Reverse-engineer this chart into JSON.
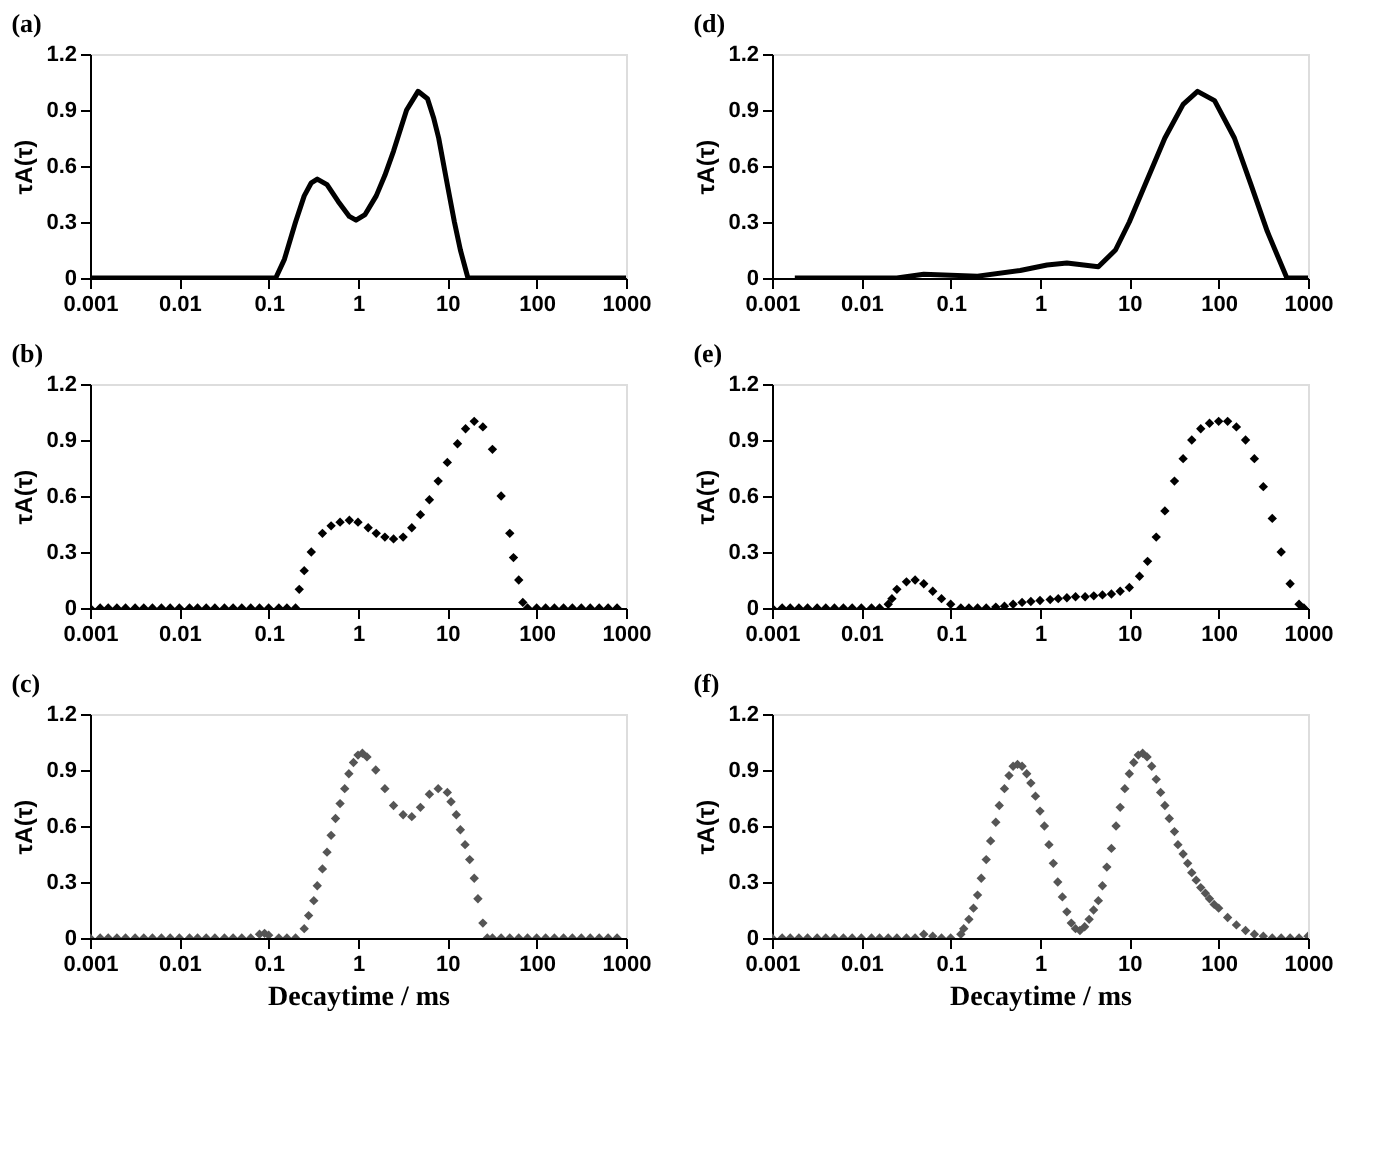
{
  "chart_data": [
    {
      "type": "line",
      "title": "(a)",
      "ylabel": "τA(τ)",
      "log": "x",
      "xlim": [
        0.001,
        1000
      ],
      "ylim": [
        0,
        1.2
      ],
      "xticks": [
        0.001,
        0.01,
        0.1,
        1,
        10,
        100,
        1000
      ],
      "yticks": [
        0,
        0.3,
        0.6,
        0.9,
        1.2
      ],
      "grid": false,
      "marker": "none",
      "line_style": "solid",
      "series": [
        {
          "color": "#000000",
          "x": [
            0.001,
            0.01,
            0.12,
            0.15,
            0.2,
            0.25,
            0.3,
            0.35,
            0.45,
            0.6,
            0.8,
            0.95,
            1.2,
            1.6,
            2,
            2.5,
            3,
            3.5,
            4.7,
            6,
            7,
            8,
            10,
            12,
            14,
            17,
            100,
            1000
          ],
          "values": [
            0,
            0,
            0,
            0.1,
            0.3,
            0.44,
            0.51,
            0.53,
            0.5,
            0.41,
            0.33,
            0.31,
            0.34,
            0.44,
            0.55,
            0.68,
            0.8,
            0.9,
            1.0,
            0.96,
            0.86,
            0.75,
            0.5,
            0.3,
            0.15,
            0,
            0,
            0
          ]
        }
      ]
    },
    {
      "type": "line",
      "title": "(d)",
      "ylabel": "τA(τ)",
      "log": "x",
      "xlim": [
        0.001,
        1000
      ],
      "ylim": [
        0,
        1.2
      ],
      "xticks": [
        0.001,
        0.01,
        0.1,
        1,
        10,
        100,
        1000
      ],
      "yticks": [
        0,
        0.3,
        0.6,
        0.9,
        1.2
      ],
      "grid": false,
      "marker": "none",
      "line_style": "solid",
      "series": [
        {
          "color": "#000000",
          "x": [
            0.0018,
            0.01,
            0.025,
            0.05,
            0.1,
            0.2,
            0.6,
            1.2,
            2,
            4.5,
            7,
            10,
            15,
            25,
            40,
            58,
            90,
            150,
            230,
            350,
            580,
            1000
          ],
          "values": [
            0,
            0,
            0,
            0.02,
            0.015,
            0.01,
            0.04,
            0.07,
            0.08,
            0.06,
            0.15,
            0.3,
            0.5,
            0.75,
            0.93,
            1.0,
            0.95,
            0.75,
            0.5,
            0.25,
            0,
            0
          ]
        }
      ]
    },
    {
      "type": "scatter",
      "title": "(b)",
      "ylabel": "τA(τ)",
      "log": "x",
      "xlim": [
        0.001,
        1000
      ],
      "ylim": [
        0,
        1.2
      ],
      "xticks": [
        0.001,
        0.01,
        0.1,
        1,
        10,
        100,
        1000
      ],
      "yticks": [
        0,
        0.3,
        0.6,
        0.9,
        1.2
      ],
      "grid": false,
      "marker": "diamond",
      "series": [
        {
          "color": "#000000",
          "x": [
            0.001,
            0.0013,
            0.0016,
            0.002,
            0.0025,
            0.0032,
            0.004,
            0.005,
            0.0063,
            0.0079,
            0.01,
            0.013,
            0.016,
            0.02,
            0.025,
            0.032,
            0.04,
            0.05,
            0.063,
            0.079,
            0.1,
            0.13,
            0.16,
            0.2,
            0.22,
            0.25,
            0.3,
            0.4,
            0.5,
            0.63,
            0.8,
            1,
            1.3,
            1.6,
            2,
            2.5,
            3.2,
            4,
            5,
            6.3,
            7.9,
            10,
            13,
            16,
            20,
            25,
            32,
            40,
            50,
            55,
            63,
            70,
            79,
            100,
            126,
            158,
            200,
            251,
            316,
            398,
            501,
            631,
            794
          ],
          "values": [
            0,
            0,
            0,
            0,
            0,
            0,
            0,
            0,
            0,
            0,
            0,
            0,
            0,
            0,
            0,
            0,
            0,
            0,
            0,
            0,
            0,
            0,
            0,
            0,
            0.1,
            0.2,
            0.3,
            0.4,
            0.44,
            0.46,
            0.47,
            0.46,
            0.43,
            0.4,
            0.38,
            0.37,
            0.38,
            0.43,
            0.5,
            0.58,
            0.68,
            0.78,
            0.88,
            0.96,
            1.0,
            0.97,
            0.85,
            0.6,
            0.4,
            0.27,
            0.15,
            0.03,
            0,
            0,
            0,
            0,
            0,
            0,
            0,
            0,
            0,
            0,
            0
          ]
        }
      ]
    },
    {
      "type": "scatter",
      "title": "(e)",
      "ylabel": "τA(τ)",
      "log": "x",
      "xlim": [
        0.001,
        1000
      ],
      "ylim": [
        0,
        1.2
      ],
      "xticks": [
        0.001,
        0.01,
        0.1,
        1,
        10,
        100,
        1000
      ],
      "yticks": [
        0,
        0.3,
        0.6,
        0.9,
        1.2
      ],
      "grid": false,
      "marker": "diamond",
      "series": [
        {
          "color": "#000000",
          "x": [
            0.001,
            0.0013,
            0.0016,
            0.002,
            0.0025,
            0.0032,
            0.004,
            0.005,
            0.0063,
            0.0079,
            0.01,
            0.013,
            0.016,
            0.02,
            0.022,
            0.025,
            0.032,
            0.04,
            0.05,
            0.063,
            0.079,
            0.1,
            0.13,
            0.16,
            0.2,
            0.25,
            0.32,
            0.4,
            0.5,
            0.63,
            0.79,
            1,
            1.3,
            1.6,
            2,
            2.5,
            3.2,
            4,
            5,
            6.3,
            7.9,
            10,
            13,
            16,
            20,
            25,
            32,
            40,
            50,
            63,
            79,
            100,
            126,
            158,
            200,
            251,
            316,
            398,
            501,
            631,
            794,
            900
          ],
          "values": [
            0,
            0,
            0,
            0,
            0,
            0,
            0,
            0,
            0,
            0,
            0,
            0,
            0,
            0.02,
            0.05,
            0.1,
            0.14,
            0.15,
            0.13,
            0.09,
            0.05,
            0.02,
            0,
            0,
            0,
            0,
            0.005,
            0.01,
            0.02,
            0.03,
            0.035,
            0.04,
            0.045,
            0.05,
            0.055,
            0.06,
            0.06,
            0.065,
            0.07,
            0.075,
            0.09,
            0.11,
            0.17,
            0.25,
            0.38,
            0.52,
            0.68,
            0.8,
            0.9,
            0.96,
            0.99,
            1.0,
            1.0,
            0.97,
            0.9,
            0.8,
            0.65,
            0.48,
            0.3,
            0.13,
            0.02,
            0
          ]
        }
      ]
    },
    {
      "type": "scatter",
      "title": "(c)",
      "xlabel": "Decaytime / ms",
      "ylabel": "τA(τ)",
      "log": "x",
      "xlim": [
        0.001,
        1000
      ],
      "ylim": [
        0,
        1.2
      ],
      "xticks": [
        0.001,
        0.01,
        0.1,
        1,
        10,
        100,
        1000
      ],
      "yticks": [
        0,
        0.3,
        0.6,
        0.9,
        1.2
      ],
      "grid": false,
      "marker": "diamond",
      "series": [
        {
          "color": "#555555",
          "x": [
            0.001,
            0.0013,
            0.0016,
            0.002,
            0.0025,
            0.0032,
            0.004,
            0.005,
            0.0063,
            0.0079,
            0.01,
            0.013,
            0.016,
            0.02,
            0.025,
            0.032,
            0.04,
            0.05,
            0.063,
            0.079,
            0.09,
            0.1,
            0.13,
            0.16,
            0.2,
            0.25,
            0.28,
            0.32,
            0.35,
            0.4,
            0.45,
            0.5,
            0.56,
            0.63,
            0.71,
            0.79,
            0.89,
            1,
            1.12,
            1.26,
            1.58,
            2,
            2.5,
            3.2,
            4,
            5,
            6.3,
            7.9,
            10,
            11,
            12.6,
            14,
            15.8,
            17.8,
            20,
            22,
            25,
            28,
            32,
            40,
            50,
            63,
            79,
            100,
            126,
            158,
            200,
            251,
            316,
            398,
            501,
            631,
            794
          ],
          "values": [
            0,
            0,
            0,
            0,
            0,
            0,
            0,
            0,
            0,
            0,
            0,
            0,
            0,
            0,
            0,
            0,
            0,
            0,
            0,
            0.02,
            0.025,
            0.015,
            0,
            0,
            0,
            0.05,
            0.12,
            0.2,
            0.28,
            0.37,
            0.46,
            0.55,
            0.64,
            0.72,
            0.8,
            0.88,
            0.94,
            0.98,
            0.99,
            0.97,
            0.9,
            0.8,
            0.71,
            0.66,
            0.65,
            0.7,
            0.77,
            0.8,
            0.78,
            0.73,
            0.66,
            0.58,
            0.5,
            0.42,
            0.32,
            0.21,
            0.08,
            0,
            0,
            0,
            0,
            0,
            0,
            0,
            0,
            0,
            0,
            0,
            0,
            0,
            0,
            0,
            0
          ]
        }
      ]
    },
    {
      "type": "scatter",
      "title": "(f)",
      "xlabel": "Decaytime / ms",
      "ylabel": "τA(τ)",
      "log": "x",
      "xlim": [
        0.001,
        1000
      ],
      "ylim": [
        0,
        1.2
      ],
      "xticks": [
        0.001,
        0.01,
        0.1,
        1,
        10,
        100,
        1000
      ],
      "yticks": [
        0,
        0.3,
        0.6,
        0.9,
        1.2
      ],
      "grid": false,
      "marker": "diamond",
      "series": [
        {
          "color": "#555555",
          "x": [
            0.001,
            0.0013,
            0.0016,
            0.002,
            0.0025,
            0.0032,
            0.004,
            0.005,
            0.0063,
            0.0079,
            0.01,
            0.013,
            0.016,
            0.02,
            0.025,
            0.032,
            0.04,
            0.05,
            0.063,
            0.079,
            0.1,
            0.13,
            0.14,
            0.16,
            0.18,
            0.2,
            0.22,
            0.25,
            0.28,
            0.32,
            0.35,
            0.4,
            0.45,
            0.5,
            0.56,
            0.63,
            0.71,
            0.79,
            0.89,
            1,
            1.12,
            1.26,
            1.41,
            1.58,
            1.78,
            2,
            2.24,
            2.5,
            2.8,
            3.16,
            3.55,
            3.98,
            4.5,
            5,
            5.6,
            6.3,
            7.1,
            7.9,
            8.9,
            10,
            11.2,
            12.6,
            14.1,
            15.8,
            17.8,
            20,
            22.4,
            25,
            28,
            32,
            35,
            40,
            45,
            50,
            56,
            63,
            71,
            79,
            89,
            100,
            126,
            158,
            200,
            251,
            316,
            398,
            501,
            631,
            794,
            1000
          ],
          "values": [
            0,
            0,
            0,
            0,
            0,
            0,
            0,
            0,
            0,
            0,
            0,
            0,
            0,
            0,
            0,
            0,
            0,
            0.02,
            0.01,
            0,
            0,
            0.02,
            0.05,
            0.1,
            0.16,
            0.23,
            0.32,
            0.42,
            0.52,
            0.62,
            0.71,
            0.8,
            0.87,
            0.92,
            0.93,
            0.92,
            0.88,
            0.83,
            0.76,
            0.68,
            0.6,
            0.5,
            0.4,
            0.3,
            0.22,
            0.14,
            0.08,
            0.05,
            0.04,
            0.06,
            0.1,
            0.15,
            0.2,
            0.28,
            0.38,
            0.48,
            0.6,
            0.7,
            0.8,
            0.88,
            0.94,
            0.98,
            0.99,
            0.97,
            0.92,
            0.85,
            0.78,
            0.71,
            0.64,
            0.57,
            0.5,
            0.45,
            0.4,
            0.35,
            0.31,
            0.27,
            0.24,
            0.21,
            0.18,
            0.16,
            0.11,
            0.07,
            0.04,
            0.02,
            0.01,
            0,
            0,
            0,
            0,
            0.01
          ]
        }
      ]
    }
  ]
}
